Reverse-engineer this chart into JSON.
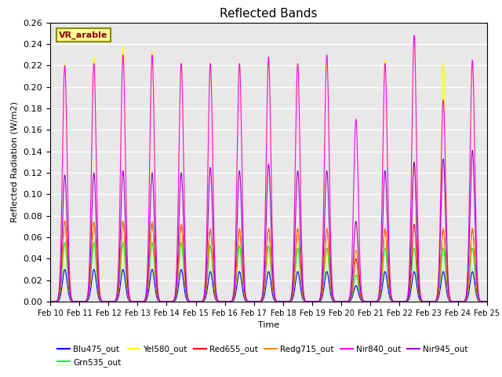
{
  "title": "Reflected Bands",
  "xlabel": "Time",
  "ylabel": "Reflected Radiation (W/m2)",
  "xlim": [
    0,
    15
  ],
  "ylim": [
    0,
    0.26
  ],
  "yticks": [
    0.0,
    0.02,
    0.04,
    0.06,
    0.08,
    0.1,
    0.12,
    0.14,
    0.16,
    0.18,
    0.2,
    0.22,
    0.24,
    0.26
  ],
  "xtick_labels": [
    "Feb 10",
    "Feb 11",
    "Feb 12",
    "Feb 13",
    "Feb 14",
    "Feb 15",
    "Feb 16",
    "Feb 17",
    "Feb 18",
    "Feb 19",
    "Feb 20",
    "Feb 21",
    "Feb 22",
    "Feb 23",
    "Feb 24",
    "Feb 25"
  ],
  "annotation_text": "VR_arable",
  "annotation_color": "#8B0000",
  "annotation_bg": "#FFFF99",
  "background_color": "#E8E8E8",
  "grid_color": "#FFFFFF",
  "peak_sigma": 0.08,
  "peak_positions": [
    0.5,
    1.5,
    2.5,
    3.5,
    4.5,
    5.5,
    6.5,
    7.5,
    8.5,
    9.5,
    10.5,
    11.5,
    12.5,
    13.5,
    14.5
  ],
  "peak_heights_Blu": [
    0.03,
    0.03,
    0.03,
    0.03,
    0.03,
    0.028,
    0.028,
    0.028,
    0.028,
    0.028,
    0.015,
    0.028,
    0.028,
    0.028,
    0.028
  ],
  "peak_heights_Grn": [
    0.055,
    0.055,
    0.055,
    0.055,
    0.055,
    0.052,
    0.052,
    0.052,
    0.05,
    0.05,
    0.025,
    0.05,
    0.05,
    0.05,
    0.05
  ],
  "peak_heights_Yel": [
    0.222,
    0.228,
    0.238,
    0.233,
    0.222,
    0.222,
    0.222,
    0.225,
    0.222,
    0.222,
    0.075,
    0.225,
    0.248,
    0.222,
    0.222
  ],
  "peak_heights_Red": [
    0.075,
    0.074,
    0.075,
    0.074,
    0.072,
    0.068,
    0.068,
    0.068,
    0.068,
    0.068,
    0.04,
    0.068,
    0.072,
    0.068,
    0.068
  ],
  "peak_heights_Redg": [
    0.075,
    0.074,
    0.075,
    0.074,
    0.072,
    0.068,
    0.068,
    0.068,
    0.068,
    0.068,
    0.048,
    0.068,
    0.13,
    0.068,
    0.068
  ],
  "peak_heights_Nir840": [
    0.22,
    0.222,
    0.23,
    0.23,
    0.222,
    0.222,
    0.222,
    0.228,
    0.222,
    0.23,
    0.17,
    0.222,
    0.248,
    0.188,
    0.225
  ],
  "peak_heights_Nir945": [
    0.118,
    0.12,
    0.122,
    0.12,
    0.12,
    0.125,
    0.122,
    0.128,
    0.122,
    0.122,
    0.075,
    0.122,
    0.13,
    0.133,
    0.141
  ],
  "series_colors": {
    "Blu475_out": "#0000FF",
    "Grn535_out": "#00FF00",
    "Yel580_out": "#FFFF00",
    "Red655_out": "#FF0000",
    "Redg715_out": "#FF8800",
    "Nir840_out": "#FF00FF",
    "Nir945_out": "#9900CC"
  },
  "legend_order": [
    "Blu475_out",
    "Grn535_out",
    "Yel580_out",
    "Red655_out",
    "Redg715_out",
    "Nir840_out",
    "Nir945_out"
  ]
}
